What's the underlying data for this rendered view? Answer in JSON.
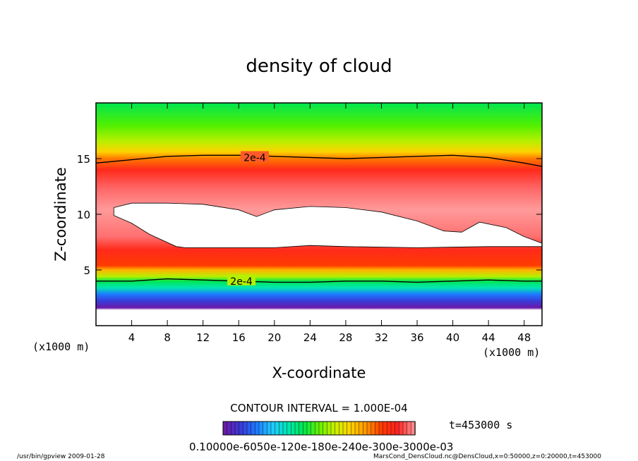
{
  "chart_data": {
    "type": "heatmap",
    "title": "density of cloud",
    "xlabel": "X-coordinate",
    "ylabel": "Z-coordinate",
    "x_unit_label": "(x1000 m)",
    "y_unit_label": "(x1000 m)",
    "xlim": [
      0,
      50
    ],
    "ylim": [
      0,
      20
    ],
    "x_ticks": [
      4,
      8,
      12,
      16,
      20,
      24,
      28,
      32,
      36,
      40,
      44,
      48
    ],
    "y_ticks": [
      5,
      10,
      15
    ],
    "contour_interval_text": "CONTOUR INTERVAL = 1.000E-04",
    "time_label": "t=453000 s",
    "colorbar_labels_text": "0.10000e-6050e-120e-180e-240e-300e-3000e-03",
    "contour_labels": [
      {
        "text": "2e-4",
        "x": 17.8,
        "z": 15.1
      },
      {
        "text": "2e-4",
        "x": 16.3,
        "z": 4.0
      }
    ],
    "contours": {
      "upper_2e-4": [
        [
          0,
          14.6
        ],
        [
          4,
          14.9
        ],
        [
          8,
          15.2
        ],
        [
          12,
          15.3
        ],
        [
          16,
          15.3
        ],
        [
          20,
          15.2
        ],
        [
          24,
          15.1
        ],
        [
          28,
          15.0
        ],
        [
          32,
          15.1
        ],
        [
          36,
          15.2
        ],
        [
          40,
          15.3
        ],
        [
          44,
          15.1
        ],
        [
          48,
          14.6
        ],
        [
          50,
          14.3
        ]
      ],
      "lower_2e-4": [
        [
          0,
          4.0
        ],
        [
          4,
          4.0
        ],
        [
          8,
          4.2
        ],
        [
          12,
          4.1
        ],
        [
          16,
          4.0
        ],
        [
          20,
          3.9
        ],
        [
          24,
          3.9
        ],
        [
          28,
          4.0
        ],
        [
          32,
          4.0
        ],
        [
          36,
          3.9
        ],
        [
          40,
          4.0
        ],
        [
          44,
          4.1
        ],
        [
          48,
          4.0
        ],
        [
          50,
          4.0
        ]
      ],
      "white_region": [
        [
          2,
          10.6
        ],
        [
          4,
          11.0
        ],
        [
          8,
          11.0
        ],
        [
          12,
          10.9
        ],
        [
          16,
          10.4
        ],
        [
          18,
          9.8
        ],
        [
          20,
          10.4
        ],
        [
          24,
          10.7
        ],
        [
          28,
          10.6
        ],
        [
          32,
          10.2
        ],
        [
          36,
          9.4
        ],
        [
          39,
          8.5
        ],
        [
          41,
          8.4
        ],
        [
          43,
          9.3
        ],
        [
          46,
          8.8
        ],
        [
          48,
          8.0
        ],
        [
          50,
          7.4
        ],
        [
          50,
          7.1
        ],
        [
          44,
          7.1
        ],
        [
          36,
          7.0
        ],
        [
          28,
          7.1
        ],
        [
          24,
          7.2
        ],
        [
          20,
          7.0
        ],
        [
          10,
          7.0
        ],
        [
          9,
          7.1
        ],
        [
          6,
          8.2
        ],
        [
          4,
          9.2
        ],
        [
          2,
          9.9
        ]
      ]
    },
    "colormap": [
      "#6a1aa8",
      "#3a3ad8",
      "#1e78ff",
      "#22c8ff",
      "#00e6b4",
      "#00e650",
      "#64f000",
      "#c8f000",
      "#ffd200",
      "#ff9600",
      "#ff3c00",
      "#ff2222",
      "#ff8888",
      "#ffffff"
    ],
    "colorbar_levels": 16
  },
  "footer": {
    "left": "/usr/bin/gpview   2009-01-28",
    "right": "MarsCond_DensCloud.nc@DensCloud,x=0:50000,z=0:20000,t=453000"
  }
}
